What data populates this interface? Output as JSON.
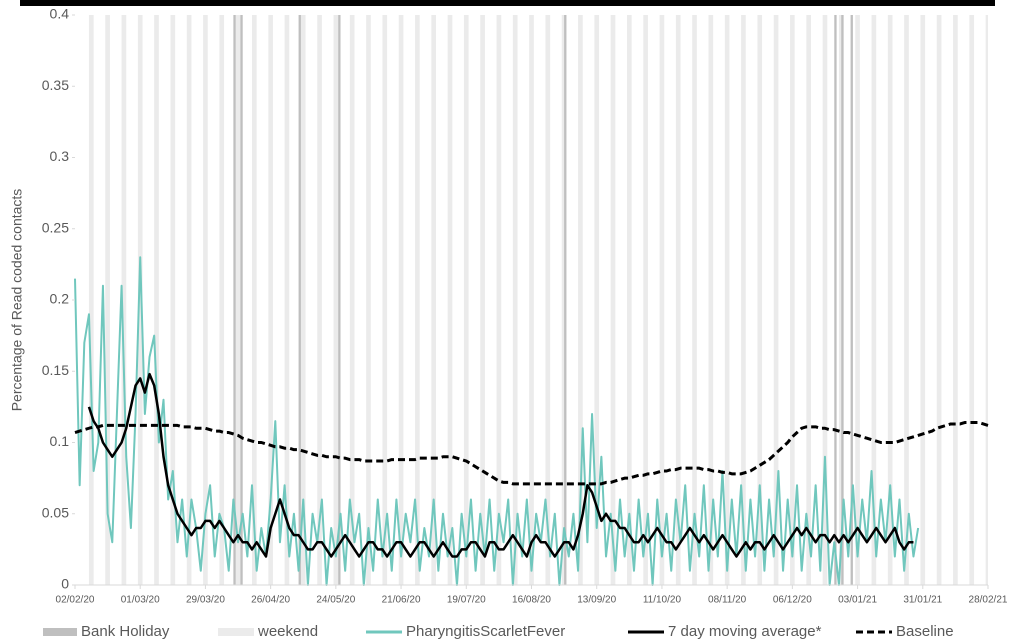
{
  "chart_data": {
    "type": "line",
    "y_label": "Percentage of Read coded contacts",
    "xlim": [
      0,
      392
    ],
    "xticks": [
      {
        "value": 0,
        "label": "02/02/20"
      },
      {
        "value": 28,
        "label": "01/03/20"
      },
      {
        "value": 56,
        "label": "29/03/20"
      },
      {
        "value": 84,
        "label": "26/04/20"
      },
      {
        "value": 112,
        "label": "24/05/20"
      },
      {
        "value": 140,
        "label": "21/06/20"
      },
      {
        "value": 168,
        "label": "19/07/20"
      },
      {
        "value": 196,
        "label": "16/08/20"
      },
      {
        "value": 224,
        "label": "13/09/20"
      },
      {
        "value": 252,
        "label": "11/10/20"
      },
      {
        "value": 280,
        "label": "08/11/20"
      },
      {
        "value": 308,
        "label": "06/12/20"
      },
      {
        "value": 336,
        "label": "03/01/21"
      },
      {
        "value": 364,
        "label": "31/01/21"
      },
      {
        "value": 392,
        "label": "28/02/21"
      }
    ],
    "ylim": [
      0,
      0.4
    ],
    "yticks": [
      0,
      0.05,
      0.1,
      0.15,
      0.2,
      0.25,
      0.3,
      0.35,
      0.4
    ],
    "bank_holidays": {
      "name": "Bank Holiday",
      "color": "#bfbfbf",
      "x": [
        68,
        71,
        96,
        113,
        210,
        326,
        329,
        333
      ]
    },
    "weekends": {
      "name": "weekend",
      "color": "#ebebeb",
      "x": [
        6,
        13,
        20,
        27,
        34,
        41,
        48,
        55,
        62,
        69,
        76,
        83,
        90,
        97,
        104,
        111,
        118,
        125,
        132,
        139,
        146,
        153,
        160,
        167,
        174,
        181,
        188,
        195,
        202,
        209,
        216,
        223,
        230,
        237,
        244,
        251,
        258,
        265,
        272,
        279,
        286,
        293,
        300,
        307,
        314,
        321,
        328,
        335,
        342,
        349,
        356,
        363,
        370,
        377,
        384,
        391
      ]
    },
    "x": [
      0,
      2,
      4,
      6,
      8,
      10,
      12,
      14,
      16,
      18,
      20,
      22,
      24,
      26,
      28,
      30,
      32,
      34,
      36,
      38,
      40,
      42,
      44,
      46,
      48,
      50,
      52,
      54,
      56,
      58,
      60,
      62,
      64,
      66,
      68,
      70,
      72,
      74,
      76,
      78,
      80,
      82,
      84,
      86,
      88,
      90,
      92,
      94,
      96,
      98,
      100,
      102,
      104,
      106,
      108,
      110,
      112,
      114,
      116,
      118,
      120,
      122,
      124,
      126,
      128,
      130,
      132,
      134,
      136,
      138,
      140,
      142,
      144,
      146,
      148,
      150,
      152,
      154,
      156,
      158,
      160,
      162,
      164,
      166,
      168,
      170,
      172,
      174,
      176,
      178,
      180,
      182,
      184,
      186,
      188,
      190,
      192,
      194,
      196,
      198,
      200,
      202,
      204,
      206,
      208,
      210,
      212,
      214,
      216,
      218,
      220,
      222,
      224,
      226,
      228,
      230,
      232,
      234,
      236,
      238,
      240,
      242,
      244,
      246,
      248,
      250,
      252,
      254,
      256,
      258,
      260,
      262,
      264,
      266,
      268,
      270,
      272,
      274,
      276,
      278,
      280,
      282,
      284,
      286,
      288,
      290,
      292,
      294,
      296,
      298,
      300,
      302,
      304,
      306,
      308,
      310,
      312,
      314,
      316,
      318,
      320,
      322,
      324,
      326,
      328,
      330,
      332,
      334,
      336,
      338,
      340,
      342,
      344,
      346,
      348,
      350,
      352,
      354,
      356,
      358,
      360,
      362,
      364,
      366,
      368,
      370,
      372,
      374,
      376,
      378,
      380,
      382,
      384,
      386,
      388,
      390,
      392
    ],
    "series": [
      {
        "name": "PharyngitisScarletFever",
        "color": "#70c7bd",
        "dash": false,
        "values": [
          0.215,
          0.07,
          0.17,
          0.19,
          0.08,
          0.1,
          0.21,
          0.05,
          0.03,
          0.12,
          0.21,
          0.09,
          0.04,
          0.12,
          0.23,
          0.12,
          0.16,
          0.175,
          0.1,
          0.13,
          0.06,
          0.08,
          0.03,
          0.06,
          0.02,
          0.06,
          0.04,
          0.01,
          0.05,
          0.07,
          0.02,
          0.05,
          0.04,
          0.01,
          0.06,
          0.03,
          0.05,
          0.02,
          0.07,
          0.01,
          0.04,
          0.02,
          0.06,
          0.115,
          0.03,
          0.07,
          0.02,
          0.05,
          0.01,
          0.06,
          0,
          0.05,
          0.03,
          0.06,
          0,
          0.04,
          0.02,
          0.05,
          0.01,
          0.06,
          0.03,
          0.05,
          0,
          0.04,
          0.01,
          0.06,
          0.02,
          0.05,
          0.01,
          0.06,
          0.02,
          0.05,
          0.03,
          0.06,
          0.01,
          0.04,
          0.02,
          0.06,
          0.01,
          0.05,
          0.02,
          0.04,
          0,
          0.05,
          0.02,
          0.06,
          0.01,
          0.05,
          0.02,
          0.06,
          0.01,
          0.05,
          0.03,
          0.06,
          0,
          0.05,
          0.02,
          0.06,
          0.01,
          0.05,
          0.03,
          0.06,
          0.02,
          0.05,
          0,
          0.04,
          0.02,
          0.05,
          0.01,
          0.11,
          0.03,
          0.12,
          0.04,
          0.09,
          0.02,
          0.05,
          0.01,
          0.06,
          0.02,
          0.05,
          0.01,
          0.06,
          0.02,
          0.05,
          0,
          0.06,
          0.02,
          0.05,
          0.01,
          0.06,
          0.03,
          0.07,
          0.01,
          0.05,
          0.02,
          0.07,
          0.01,
          0.06,
          0.02,
          0.08,
          0.01,
          0.06,
          0.02,
          0.07,
          0.01,
          0.06,
          0.02,
          0.07,
          0.01,
          0.06,
          0.02,
          0.08,
          0.01,
          0.06,
          0.02,
          0.07,
          0.01,
          0.05,
          0.02,
          0.07,
          0.01,
          0.09,
          0,
          0.03,
          0,
          0.06,
          0.02,
          0.07,
          0.02,
          0.06,
          0.03,
          0.08,
          0.02,
          0.06,
          0.03,
          0.07,
          0.02,
          0.06,
          0.01,
          0.05,
          0.02,
          0.04,
          null,
          null,
          null,
          null,
          null,
          null,
          null,
          null,
          null,
          null,
          null,
          null,
          null,
          null,
          null
        ]
      },
      {
        "name": "7 day moving average*",
        "color": "#000000",
        "dash": false,
        "values": [
          null,
          null,
          null,
          0.125,
          0.115,
          0.11,
          0.1,
          0.095,
          0.09,
          0.095,
          0.1,
          0.11,
          0.125,
          0.14,
          0.145,
          0.135,
          0.148,
          0.14,
          0.12,
          0.09,
          0.07,
          0.06,
          0.05,
          0.045,
          0.04,
          0.035,
          0.04,
          0.04,
          0.045,
          0.045,
          0.04,
          0.045,
          0.04,
          0.035,
          0.03,
          0.035,
          0.03,
          0.03,
          0.025,
          0.03,
          0.025,
          0.02,
          0.04,
          0.05,
          0.06,
          0.05,
          0.04,
          0.035,
          0.035,
          0.03,
          0.025,
          0.025,
          0.03,
          0.03,
          0.025,
          0.02,
          0.025,
          0.03,
          0.035,
          0.03,
          0.025,
          0.02,
          0.025,
          0.03,
          0.03,
          0.025,
          0.025,
          0.02,
          0.025,
          0.03,
          0.03,
          0.025,
          0.02,
          0.025,
          0.03,
          0.03,
          0.025,
          0.02,
          0.025,
          0.03,
          0.025,
          0.02,
          0.02,
          0.025,
          0.025,
          0.03,
          0.03,
          0.025,
          0.02,
          0.03,
          0.03,
          0.025,
          0.025,
          0.03,
          0.035,
          0.03,
          0.025,
          0.02,
          0.03,
          0.035,
          0.03,
          0.03,
          0.025,
          0.02,
          0.025,
          0.03,
          0.03,
          0.025,
          0.035,
          0.05,
          0.07,
          0.065,
          0.055,
          0.045,
          0.05,
          0.045,
          0.045,
          0.04,
          0.04,
          0.035,
          0.03,
          0.03,
          0.035,
          0.03,
          0.035,
          0.04,
          0.035,
          0.03,
          0.03,
          0.025,
          0.03,
          0.035,
          0.04,
          0.035,
          0.03,
          0.035,
          0.03,
          0.025,
          0.03,
          0.035,
          0.03,
          0.025,
          0.02,
          0.025,
          0.03,
          0.025,
          0.03,
          0.03,
          0.025,
          0.03,
          0.035,
          0.03,
          0.025,
          0.03,
          0.035,
          0.04,
          0.035,
          0.04,
          0.035,
          0.03,
          0.035,
          0.035,
          0.03,
          0.035,
          0.03,
          0.035,
          0.03,
          0.035,
          0.04,
          0.035,
          0.03,
          0.035,
          0.04,
          0.035,
          0.03,
          0.035,
          0.04,
          0.03,
          0.025,
          0.03,
          0.03,
          null,
          null,
          null,
          null,
          null,
          null,
          null,
          null,
          null,
          null,
          null,
          null,
          null,
          null,
          null,
          null
        ]
      },
      {
        "name": "Baseline",
        "color": "#000000",
        "dash": true,
        "values": [
          0.107,
          0.108,
          0.109,
          0.11,
          0.111,
          0.111,
          0.112,
          0.112,
          0.112,
          0.112,
          0.112,
          0.112,
          0.112,
          0.112,
          0.112,
          0.112,
          0.112,
          0.112,
          0.112,
          0.112,
          0.112,
          0.112,
          0.112,
          0.111,
          0.111,
          0.111,
          0.11,
          0.11,
          0.11,
          0.109,
          0.108,
          0.108,
          0.107,
          0.107,
          0.106,
          0.105,
          0.103,
          0.102,
          0.101,
          0.1,
          0.1,
          0.099,
          0.098,
          0.097,
          0.097,
          0.096,
          0.096,
          0.095,
          0.095,
          0.094,
          0.093,
          0.092,
          0.091,
          0.091,
          0.09,
          0.09,
          0.09,
          0.089,
          0.089,
          0.088,
          0.088,
          0.088,
          0.087,
          0.087,
          0.087,
          0.087,
          0.087,
          0.087,
          0.088,
          0.088,
          0.088,
          0.088,
          0.088,
          0.088,
          0.089,
          0.089,
          0.089,
          0.089,
          0.089,
          0.09,
          0.09,
          0.09,
          0.089,
          0.088,
          0.087,
          0.085,
          0.083,
          0.081,
          0.079,
          0.077,
          0.075,
          0.073,
          0.072,
          0.072,
          0.071,
          0.071,
          0.071,
          0.071,
          0.071,
          0.071,
          0.071,
          0.071,
          0.071,
          0.071,
          0.071,
          0.071,
          0.071,
          0.071,
          0.071,
          0.071,
          0.071,
          0.071,
          0.071,
          0.071,
          0.072,
          0.072,
          0.073,
          0.074,
          0.075,
          0.075,
          0.076,
          0.077,
          0.077,
          0.078,
          0.078,
          0.079,
          0.08,
          0.08,
          0.081,
          0.081,
          0.082,
          0.082,
          0.082,
          0.082,
          0.082,
          0.081,
          0.081,
          0.08,
          0.08,
          0.079,
          0.079,
          0.078,
          0.078,
          0.078,
          0.079,
          0.08,
          0.082,
          0.084,
          0.086,
          0.088,
          0.091,
          0.094,
          0.097,
          0.1,
          0.104,
          0.107,
          0.11,
          0.111,
          0.111,
          0.111,
          0.11,
          0.11,
          0.109,
          0.109,
          0.108,
          0.107,
          0.107,
          0.106,
          0.105,
          0.104,
          0.103,
          0.102,
          0.101,
          0.1,
          0.1,
          0.1,
          0.1,
          0.101,
          0.102,
          0.103,
          0.104,
          0.105,
          0.106,
          0.107,
          0.108,
          0.11,
          0.111,
          0.112,
          0.113,
          0.113,
          0.113,
          0.114,
          0.114,
          0.114,
          0.114,
          0.113,
          0.112
        ]
      }
    ]
  }
}
